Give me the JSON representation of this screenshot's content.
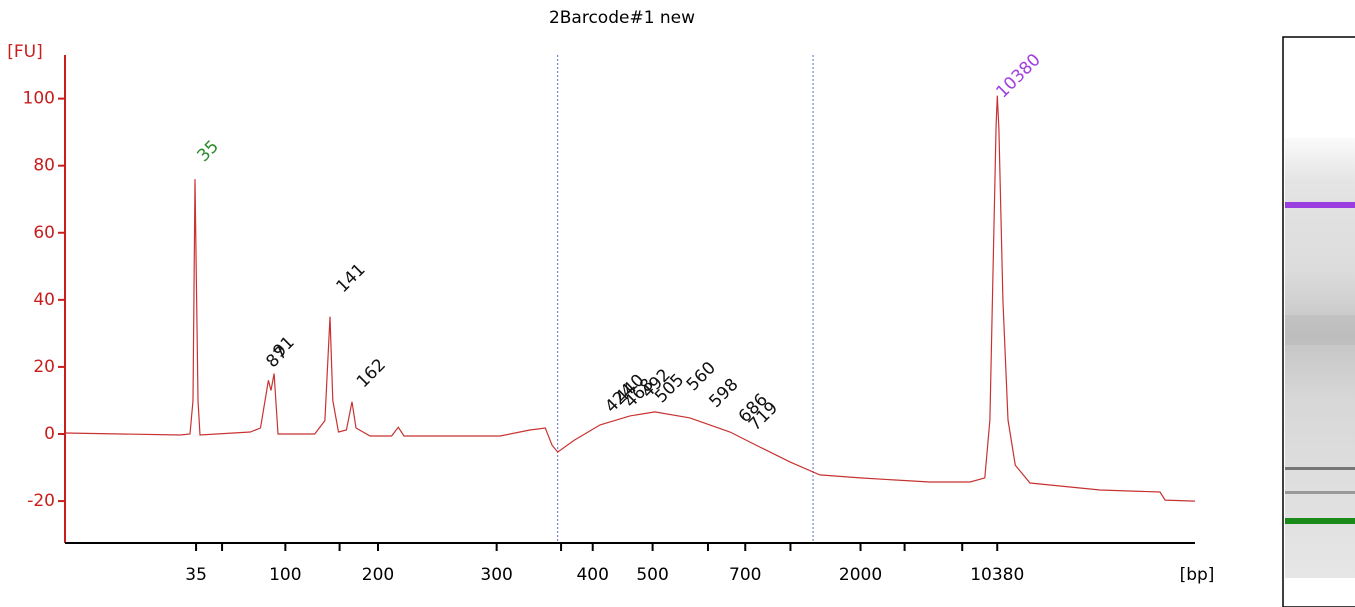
{
  "chart_data": {
    "type": "line",
    "title": "2Barcode#1 new",
    "y_label": "[FU]",
    "x_label": "[bp]",
    "ylim": [
      -32.5,
      113
    ],
    "yticks": [
      -20,
      0,
      20,
      40,
      60,
      80,
      100
    ],
    "xlim": [
      0,
      100
    ],
    "xticks": [
      {
        "value": 11.6,
        "label": "35"
      },
      {
        "value": 13.9,
        "label": null
      },
      {
        "value": 19.5,
        "label": "100"
      },
      {
        "value": 24.3,
        "label": null
      },
      {
        "value": 27.7,
        "label": "200"
      },
      {
        "value": 38.2,
        "label": "300"
      },
      {
        "value": 43.9,
        "label": null
      },
      {
        "value": 46.7,
        "label": "400"
      },
      {
        "value": 52.0,
        "label": "500"
      },
      {
        "value": 56.9,
        "label": null
      },
      {
        "value": 60.2,
        "label": "700"
      },
      {
        "value": 64.2,
        "label": null
      },
      {
        "value": 70.4,
        "label": "2000"
      },
      {
        "value": 74.3,
        "label": null
      },
      {
        "value": 79.4,
        "label": null
      },
      {
        "value": 82.5,
        "label": "10380"
      }
    ],
    "axis_color": "#c81e1e",
    "series": [
      {
        "color": "#c83232",
        "x": [
          0,
          10.2,
          11.06,
          11.33,
          11.5,
          11.77,
          11.95,
          16.4,
          17.3,
          18.0,
          18.23,
          18.5,
          18.85,
          22.1,
          23.0,
          23.45,
          23.7,
          24.2,
          24.9,
          25.4,
          25.75,
          27.0,
          28.9,
          29.5,
          30.0,
          38.5,
          41.15,
          42.5,
          43.1,
          43.6,
          45.1,
          47.35,
          50,
          52.2,
          55.3,
          58.85,
          61.5,
          64.2,
          66.8,
          70.35,
          76.5,
          80.1,
          81.4,
          81.85,
          82.2,
          82.4,
          82.5,
          82.65,
          83,
          83.45,
          84.1,
          85.4,
          91.6,
          96.9,
          97.35,
          100
        ],
        "values": [
          0.3,
          -0.3,
          0,
          10,
          76,
          10,
          -0.3,
          0.6,
          1.8,
          16,
          13,
          18,
          0,
          0,
          4,
          35,
          10,
          0.6,
          1.2,
          9.6,
          1.8,
          -0.6,
          -0.6,
          2,
          -0.6,
          -0.6,
          1.2,
          1.8,
          -3.3,
          -5.4,
          -1.8,
          2.7,
          5.4,
          6.6,
          4.8,
          0.6,
          -3.9,
          -8.4,
          -12.2,
          -13.1,
          -14.3,
          -14.3,
          -13.1,
          4.2,
          61,
          92,
          100.9,
          91,
          40,
          4.2,
          -9.3,
          -14.6,
          -16.7,
          -17.3,
          -19.7,
          -20
        ]
      }
    ],
    "region_bounds": [
      43.6,
      66.2
    ],
    "annotations": [
      {
        "text": "35",
        "x": 12.0,
        "y": 82,
        "color": "#2a8a2a"
      },
      {
        "text": "87",
        "x": 18.1,
        "y": 20.6,
        "color": "#111111"
      },
      {
        "text": "91",
        "x": 18.7,
        "y": 23.6,
        "color": "#111111"
      },
      {
        "text": "141",
        "x": 24.3,
        "y": 43,
        "color": "#111111"
      },
      {
        "text": "162",
        "x": 26.1,
        "y": 14.6,
        "color": "#111111"
      },
      {
        "text": "424",
        "x": 48.1,
        "y": 7.2,
        "color": "#111111"
      },
      {
        "text": "440",
        "x": 49.0,
        "y": 10,
        "color": "#111111"
      },
      {
        "text": "468",
        "x": 49.8,
        "y": 8.7,
        "color": "#111111"
      },
      {
        "text": "492",
        "x": 51.3,
        "y": 11.6,
        "color": "#111111"
      },
      {
        "text": "505",
        "x": 52.5,
        "y": 10.1,
        "color": "#111111"
      },
      {
        "text": "560",
        "x": 55.3,
        "y": 13.7,
        "color": "#111111"
      },
      {
        "text": "598",
        "x": 57.3,
        "y": 8.7,
        "color": "#111111"
      },
      {
        "text": "686",
        "x": 59.9,
        "y": 4.2,
        "color": "#111111"
      },
      {
        "text": "719",
        "x": 60.8,
        "y": 1.8,
        "color": "#111111"
      },
      {
        "text": "10380",
        "x": 82.7,
        "y": 101,
        "color": "#a040e0"
      }
    ]
  }
}
